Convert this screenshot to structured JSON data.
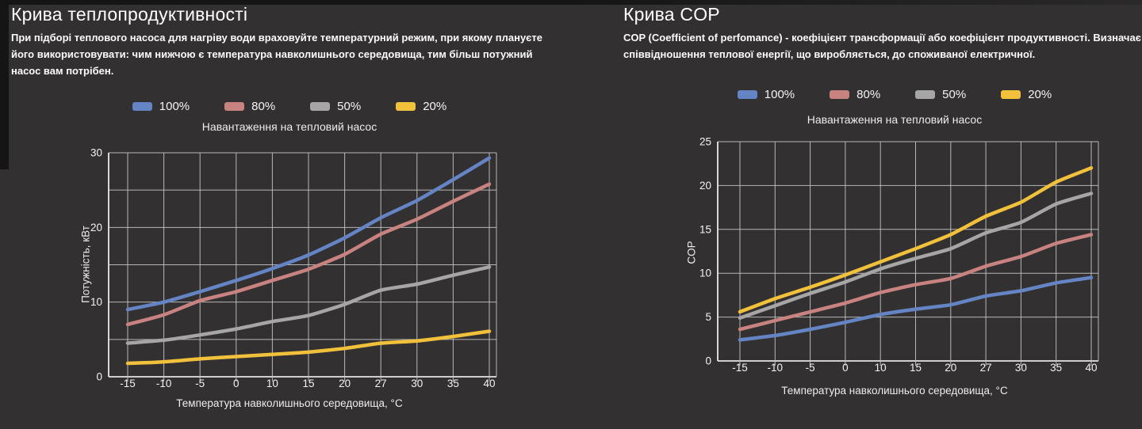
{
  "page": {
    "background": "#323031",
    "grid_color": "#c6c6c6",
    "axis_color": "#e0e0e0",
    "text_color": "#f2f2f2"
  },
  "left_panel": {
    "title": "Крива теплопродуктивності",
    "description": "При підборі теплового насоса для нагріву води враховуйте температурний режим, при якому плануєте його використовувати: чим нижчою є температура навколишнього середовища, тим більш потужний насос вам потрібен."
  },
  "right_panel": {
    "title": "Крива COP",
    "description": "COP (Coefficient of perfomance) - коефіцієнт трансформації або коефіцієнт продуктивності. Визначає співвідношення теплової енергії, що виробляється, до споживаної електричної."
  },
  "chart_data": [
    {
      "type": "line",
      "title": "Навантаження на тепловий насос",
      "xlabel": "Температура навколишнього середовища, °С",
      "ylabel": "Потужність, кВт",
      "categories": [
        "-15",
        "-10",
        "-5",
        "0",
        "10",
        "15",
        "20",
        "27",
        "30",
        "35",
        "40"
      ],
      "ylim": [
        0,
        30
      ],
      "ytick_step": 5,
      "ytick_labels": [
        0,
        10,
        20,
        30
      ],
      "grid": true,
      "legend_position": "top",
      "series": [
        {
          "name": "100%",
          "color": "#6484c4",
          "values": [
            9,
            10,
            11.4,
            12.9,
            14.5,
            16.3,
            18.6,
            21.3,
            23.6,
            26.4,
            29.3
          ]
        },
        {
          "name": "80%",
          "color": "#c8827f",
          "values": [
            7,
            8.3,
            10.2,
            11.4,
            12.9,
            14.4,
            16.4,
            19.1,
            21.1,
            23.5,
            25.8
          ]
        },
        {
          "name": "50%",
          "color": "#a6a6a6",
          "values": [
            4.5,
            4.9,
            5.6,
            6.4,
            7.4,
            8.2,
            9.7,
            11.6,
            12.4,
            13.6,
            14.7
          ]
        },
        {
          "name": "20%",
          "color": "#f1c13b",
          "values": [
            1.8,
            2,
            2.4,
            2.7,
            3,
            3.3,
            3.8,
            4.5,
            4.8,
            5.4,
            6.1
          ]
        }
      ]
    },
    {
      "type": "line",
      "title": "Навантаження на тепловий насос",
      "xlabel": "Температура навколишнього середовища, °С",
      "ylabel": "COP",
      "categories": [
        "-15",
        "-10",
        "-5",
        "0",
        "10",
        "15",
        "20",
        "27",
        "30",
        "35",
        "40"
      ],
      "ylim": [
        0,
        25
      ],
      "ytick_step": 5,
      "ytick_labels": [
        0,
        5,
        10,
        15,
        20,
        25
      ],
      "grid": true,
      "legend_position": "top",
      "series": [
        {
          "name": "100%",
          "color": "#6484c4",
          "values": [
            2.4,
            2.9,
            3.6,
            4.4,
            5.3,
            5.9,
            6.4,
            7.4,
            8,
            8.9,
            9.5
          ]
        },
        {
          "name": "80%",
          "color": "#c8827f",
          "values": [
            3.6,
            4.6,
            5.6,
            6.6,
            7.8,
            8.7,
            9.4,
            10.8,
            11.9,
            13.4,
            14.4
          ]
        },
        {
          "name": "50%",
          "color": "#a6a6a6",
          "values": [
            4.9,
            6.3,
            7.7,
            9,
            10.5,
            11.7,
            12.8,
            14.6,
            15.8,
            17.9,
            19.1
          ]
        },
        {
          "name": "20%",
          "color": "#f1c13b",
          "values": [
            5.6,
            7.1,
            8.4,
            9.8,
            11.3,
            12.8,
            14.4,
            16.5,
            18.1,
            20.4,
            22
          ]
        }
      ]
    }
  ]
}
